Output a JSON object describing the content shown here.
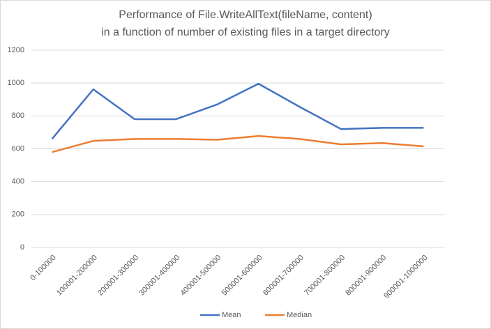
{
  "chart_data": {
    "type": "line",
    "title": [
      "Performance of File.WriteAllText(fileName, content)",
      "in a function of number of existing files in a target directory"
    ],
    "categories": [
      "0-100000",
      "100001-200000",
      "200001-300000",
      "300001-400000",
      "400001-500000",
      "500001-600000",
      "600001-700000",
      "700001-800000",
      "800001-900000",
      "900001-1000000"
    ],
    "series": [
      {
        "name": "Mean",
        "color": "#4472c4",
        "values": [
          660,
          962,
          780,
          780,
          870,
          996,
          855,
          720,
          728,
          728
        ]
      },
      {
        "name": "Median",
        "color": "#ed7d31",
        "values": [
          580,
          648,
          660,
          660,
          655,
          678,
          660,
          627,
          635,
          615
        ]
      }
    ],
    "ylim": [
      0,
      1200
    ],
    "yticks": [
      0,
      200,
      400,
      600,
      800,
      1000,
      1200
    ],
    "grid": true,
    "legend": "bottom"
  }
}
